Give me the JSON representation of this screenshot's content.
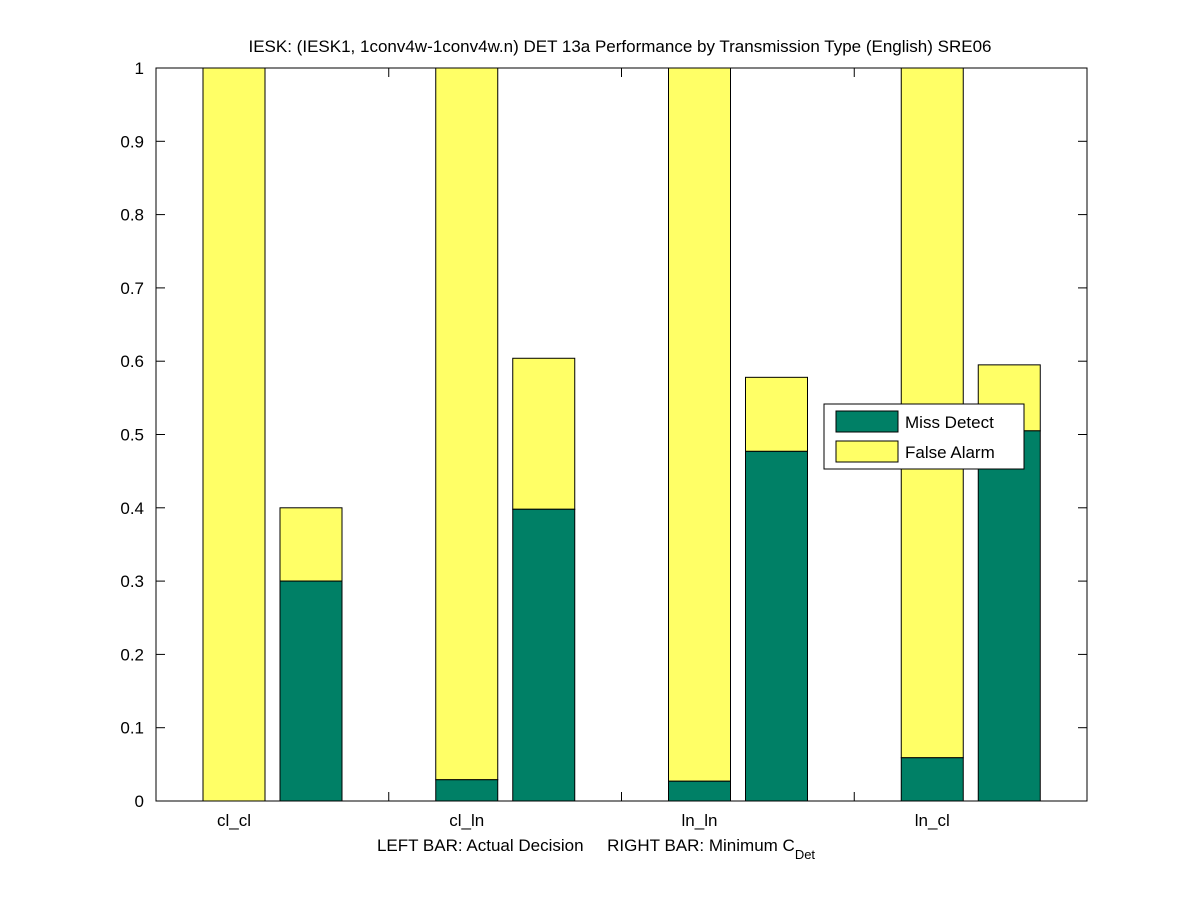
{
  "chart_data": {
    "type": "bar",
    "stacked": true,
    "title": "IESK: (IESK1, 1conv4w-1conv4w.n) DET 13a Performance by Transmission Type (English) SRE06",
    "xlabel": "LEFT BAR: Actual Decision     RIGHT BAR: Minimum C",
    "xlabel_sub": "Det",
    "categories": [
      "cl_cl",
      "cl_ln",
      "ln_ln",
      "ln_cl"
    ],
    "ylim": [
      0,
      1
    ],
    "yticks": [
      "0",
      "0.1",
      "0.2",
      "0.3",
      "0.4",
      "0.5",
      "0.6",
      "0.7",
      "0.8",
      "0.9",
      "1"
    ],
    "bars": [
      {
        "category": "cl_cl",
        "side": "left",
        "miss": 0.0,
        "total": 1.0
      },
      {
        "category": "cl_cl",
        "side": "right",
        "miss": 0.3,
        "total": 0.4
      },
      {
        "category": "cl_ln",
        "side": "left",
        "miss": 0.029,
        "total": 1.0
      },
      {
        "category": "cl_ln",
        "side": "right",
        "miss": 0.398,
        "total": 0.604
      },
      {
        "category": "ln_ln",
        "side": "left",
        "miss": 0.027,
        "total": 1.0
      },
      {
        "category": "ln_ln",
        "side": "right",
        "miss": 0.477,
        "total": 0.578
      },
      {
        "category": "ln_cl",
        "side": "left",
        "miss": 0.059,
        "total": 1.0
      },
      {
        "category": "ln_cl",
        "side": "right",
        "miss": 0.505,
        "total": 0.595
      }
    ],
    "legend": {
      "placement": "right",
      "entries": [
        {
          "name": "Miss Detect",
          "color": "#008066"
        },
        {
          "name": "False Alarm",
          "color": "#ffff66"
        }
      ]
    }
  }
}
